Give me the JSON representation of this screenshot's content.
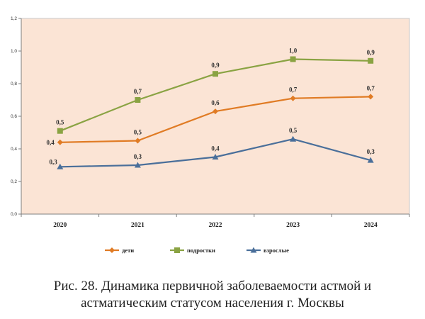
{
  "chart_data": {
    "type": "line",
    "categories": [
      "2020",
      "2021",
      "2022",
      "2023",
      "2024"
    ],
    "ylim": [
      0,
      1.2
    ],
    "yticks": [
      "0,0",
      "0,2",
      "0,4",
      "0,6",
      "0,8",
      "1,0",
      "1,2"
    ],
    "title": "",
    "xlabel": "",
    "ylabel": "",
    "grid": false,
    "legend_position": "bottom",
    "plot_background": "#fbe4d5",
    "series": [
      {
        "name": "дети",
        "color": "#e07b24",
        "marker": "diamond",
        "values": [
          0.44,
          0.45,
          0.63,
          0.71,
          0.72
        ],
        "labels": [
          "0,4",
          "0,5",
          "0,6",
          "0,7",
          "0,7"
        ]
      },
      {
        "name": "подростки",
        "color": "#8aa343",
        "marker": "square",
        "values": [
          0.51,
          0.7,
          0.86,
          0.95,
          0.94
        ],
        "labels": [
          "0,5",
          "0,7",
          "0,9",
          "1,0",
          "0,9"
        ]
      },
      {
        "name": "взрослые",
        "color": "#4a6f9a",
        "marker": "triangle",
        "values": [
          0.29,
          0.3,
          0.35,
          0.46,
          0.33
        ],
        "labels": [
          "0,3",
          "0,3",
          "0,4",
          "0,5",
          "0,3"
        ]
      }
    ]
  },
  "caption": {
    "line1": "Рис. 28. Динамика первичной заболеваемости астмой и",
    "line2": "астматическим статусом населения г. Москвы"
  }
}
